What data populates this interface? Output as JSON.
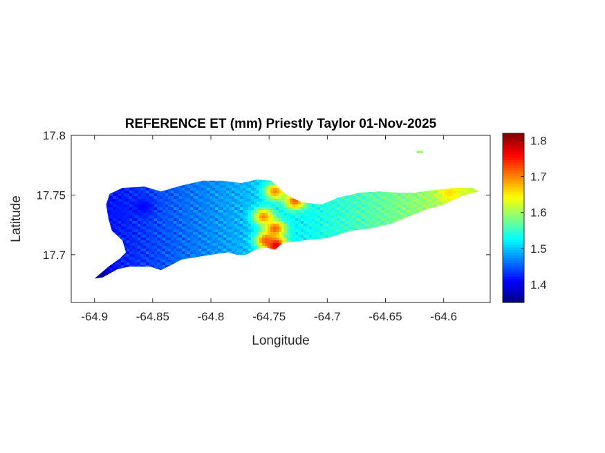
{
  "map": {
    "title": "REFERENCE ET (mm) Priestly Taylor 01-Nov-2025",
    "xlabel": "Longitude",
    "ylabel": "Latitude",
    "xlim": [
      -64.92,
      -64.56
    ],
    "ylim": [
      17.66,
      17.8
    ],
    "x_ticks": [
      "-64.9",
      "-64.85",
      "-64.8",
      "-64.75",
      "-64.7",
      "-64.65",
      "-64.6"
    ],
    "y_ticks": [
      "17.7",
      "17.75",
      "17.8"
    ]
  },
  "colorbar": {
    "colormap": "jet",
    "range": [
      1.35,
      1.82
    ],
    "ticks": [
      "1.4",
      "1.5",
      "1.6",
      "1.7",
      "1.8"
    ]
  },
  "chart_data": {
    "type": "heatmap",
    "title": "REFERENCE ET (mm) Priestly Taylor 01-Nov-2025",
    "xlabel": "Longitude",
    "ylabel": "Latitude",
    "xlim": [
      -64.92,
      -64.56
    ],
    "ylim": [
      17.66,
      17.8
    ],
    "value_range": [
      1.35,
      1.82
    ],
    "colormap": "jet",
    "grid": false,
    "island_outline": [
      [
        -64.9,
        17.68
      ],
      [
        -64.888,
        17.69
      ],
      [
        -64.878,
        17.697
      ],
      [
        -64.873,
        17.702
      ],
      [
        -64.876,
        17.712
      ],
      [
        -64.885,
        17.72
      ],
      [
        -64.888,
        17.73
      ],
      [
        -64.89,
        17.742
      ],
      [
        -64.887,
        17.751
      ],
      [
        -64.876,
        17.756
      ],
      [
        -64.857,
        17.757
      ],
      [
        -64.843,
        17.753
      ],
      [
        -64.825,
        17.758
      ],
      [
        -64.807,
        17.762
      ],
      [
        -64.79,
        17.762
      ],
      [
        -64.774,
        17.76
      ],
      [
        -64.76,
        17.763
      ],
      [
        -64.748,
        17.762
      ],
      [
        -64.735,
        17.75
      ],
      [
        -64.722,
        17.744
      ],
      [
        -64.705,
        17.742
      ],
      [
        -64.69,
        17.748
      ],
      [
        -64.672,
        17.752
      ],
      [
        -64.655,
        17.753
      ],
      [
        -64.64,
        17.752
      ],
      [
        -64.625,
        17.752
      ],
      [
        -64.61,
        17.754
      ],
      [
        -64.59,
        17.756
      ],
      [
        -64.575,
        17.756
      ],
      [
        -64.57,
        17.753
      ],
      [
        -64.585,
        17.749
      ],
      [
        -64.6,
        17.742
      ],
      [
        -64.615,
        17.738
      ],
      [
        -64.63,
        17.732
      ],
      [
        -64.645,
        17.726
      ],
      [
        -64.663,
        17.722
      ],
      [
        -64.68,
        17.72
      ],
      [
        -64.7,
        17.714
      ],
      [
        -64.72,
        17.712
      ],
      [
        -64.738,
        17.71
      ],
      [
        -64.745,
        17.704
      ],
      [
        -64.752,
        17.706
      ],
      [
        -64.76,
        17.705
      ],
      [
        -64.77,
        17.7
      ],
      [
        -64.778,
        17.7
      ],
      [
        -64.785,
        17.702
      ],
      [
        -64.8,
        17.7
      ],
      [
        -64.812,
        17.698
      ],
      [
        -64.825,
        17.696
      ],
      [
        -64.833,
        17.692
      ],
      [
        -64.843,
        17.687
      ],
      [
        -64.852,
        17.69
      ],
      [
        -64.87,
        17.69
      ],
      [
        -64.88,
        17.688
      ],
      [
        -64.893,
        17.681
      ]
    ],
    "islet_outline": [
      [
        -64.623,
        17.787
      ],
      [
        -64.618,
        17.787
      ],
      [
        -64.618,
        17.785
      ],
      [
        -64.623,
        17.785
      ]
    ],
    "anomalies": [
      {
        "lon": -64.745,
        "lat": 17.708,
        "value": 1.8
      },
      {
        "lon": -64.753,
        "lat": 17.712,
        "value": 1.72
      },
      {
        "lon": -64.745,
        "lat": 17.722,
        "value": 1.72
      },
      {
        "lon": -64.755,
        "lat": 17.732,
        "value": 1.7
      },
      {
        "lon": -64.745,
        "lat": 17.753,
        "value": 1.7
      },
      {
        "lon": -64.728,
        "lat": 17.745,
        "value": 1.72
      },
      {
        "lon": -64.595,
        "lat": 17.752,
        "value": 1.66
      },
      {
        "lon": -64.88,
        "lat": 17.735,
        "value": 1.42
      },
      {
        "lon": -64.858,
        "lat": 17.74,
        "value": 1.41
      },
      {
        "lon": -64.895,
        "lat": 17.683,
        "value": 1.36
      }
    ]
  }
}
